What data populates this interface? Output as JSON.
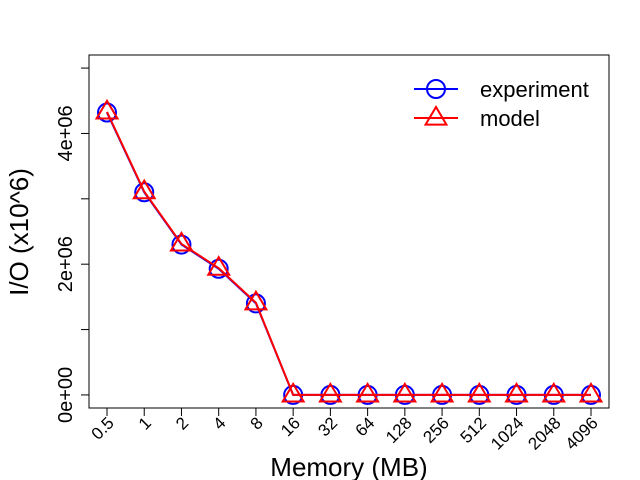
{
  "chart_data": {
    "type": "line",
    "title": "",
    "xlabel": "Memory (MB)",
    "ylabel": "I/O (x10^6)",
    "categories": [
      "0.5",
      "1",
      "2",
      "4",
      "8",
      "16",
      "32",
      "64",
      "128",
      "256",
      "512",
      "1024",
      "2048",
      "4096"
    ],
    "ylim": [
      -200000,
      5200000
    ],
    "yticks": [
      0,
      2000000,
      4000000
    ],
    "ytick_labels": [
      "0e+00",
      "2e+06",
      "4e+06"
    ],
    "y_minor_ticks": [
      0,
      1000000,
      2000000,
      3000000,
      4000000,
      5000000
    ],
    "grid": false,
    "legend_position": "top-right",
    "series": [
      {
        "name": "experiment",
        "color": "#0000ff",
        "marker": "circle",
        "values": [
          4320000,
          3100000,
          2300000,
          1930000,
          1400000,
          0,
          0,
          0,
          0,
          0,
          0,
          0,
          0,
          0
        ]
      },
      {
        "name": "model",
        "color": "#ff0000",
        "marker": "triangle",
        "values": [
          4330000,
          3110000,
          2310000,
          1940000,
          1410000,
          0,
          0,
          0,
          0,
          0,
          0,
          0,
          0,
          0
        ]
      }
    ]
  }
}
